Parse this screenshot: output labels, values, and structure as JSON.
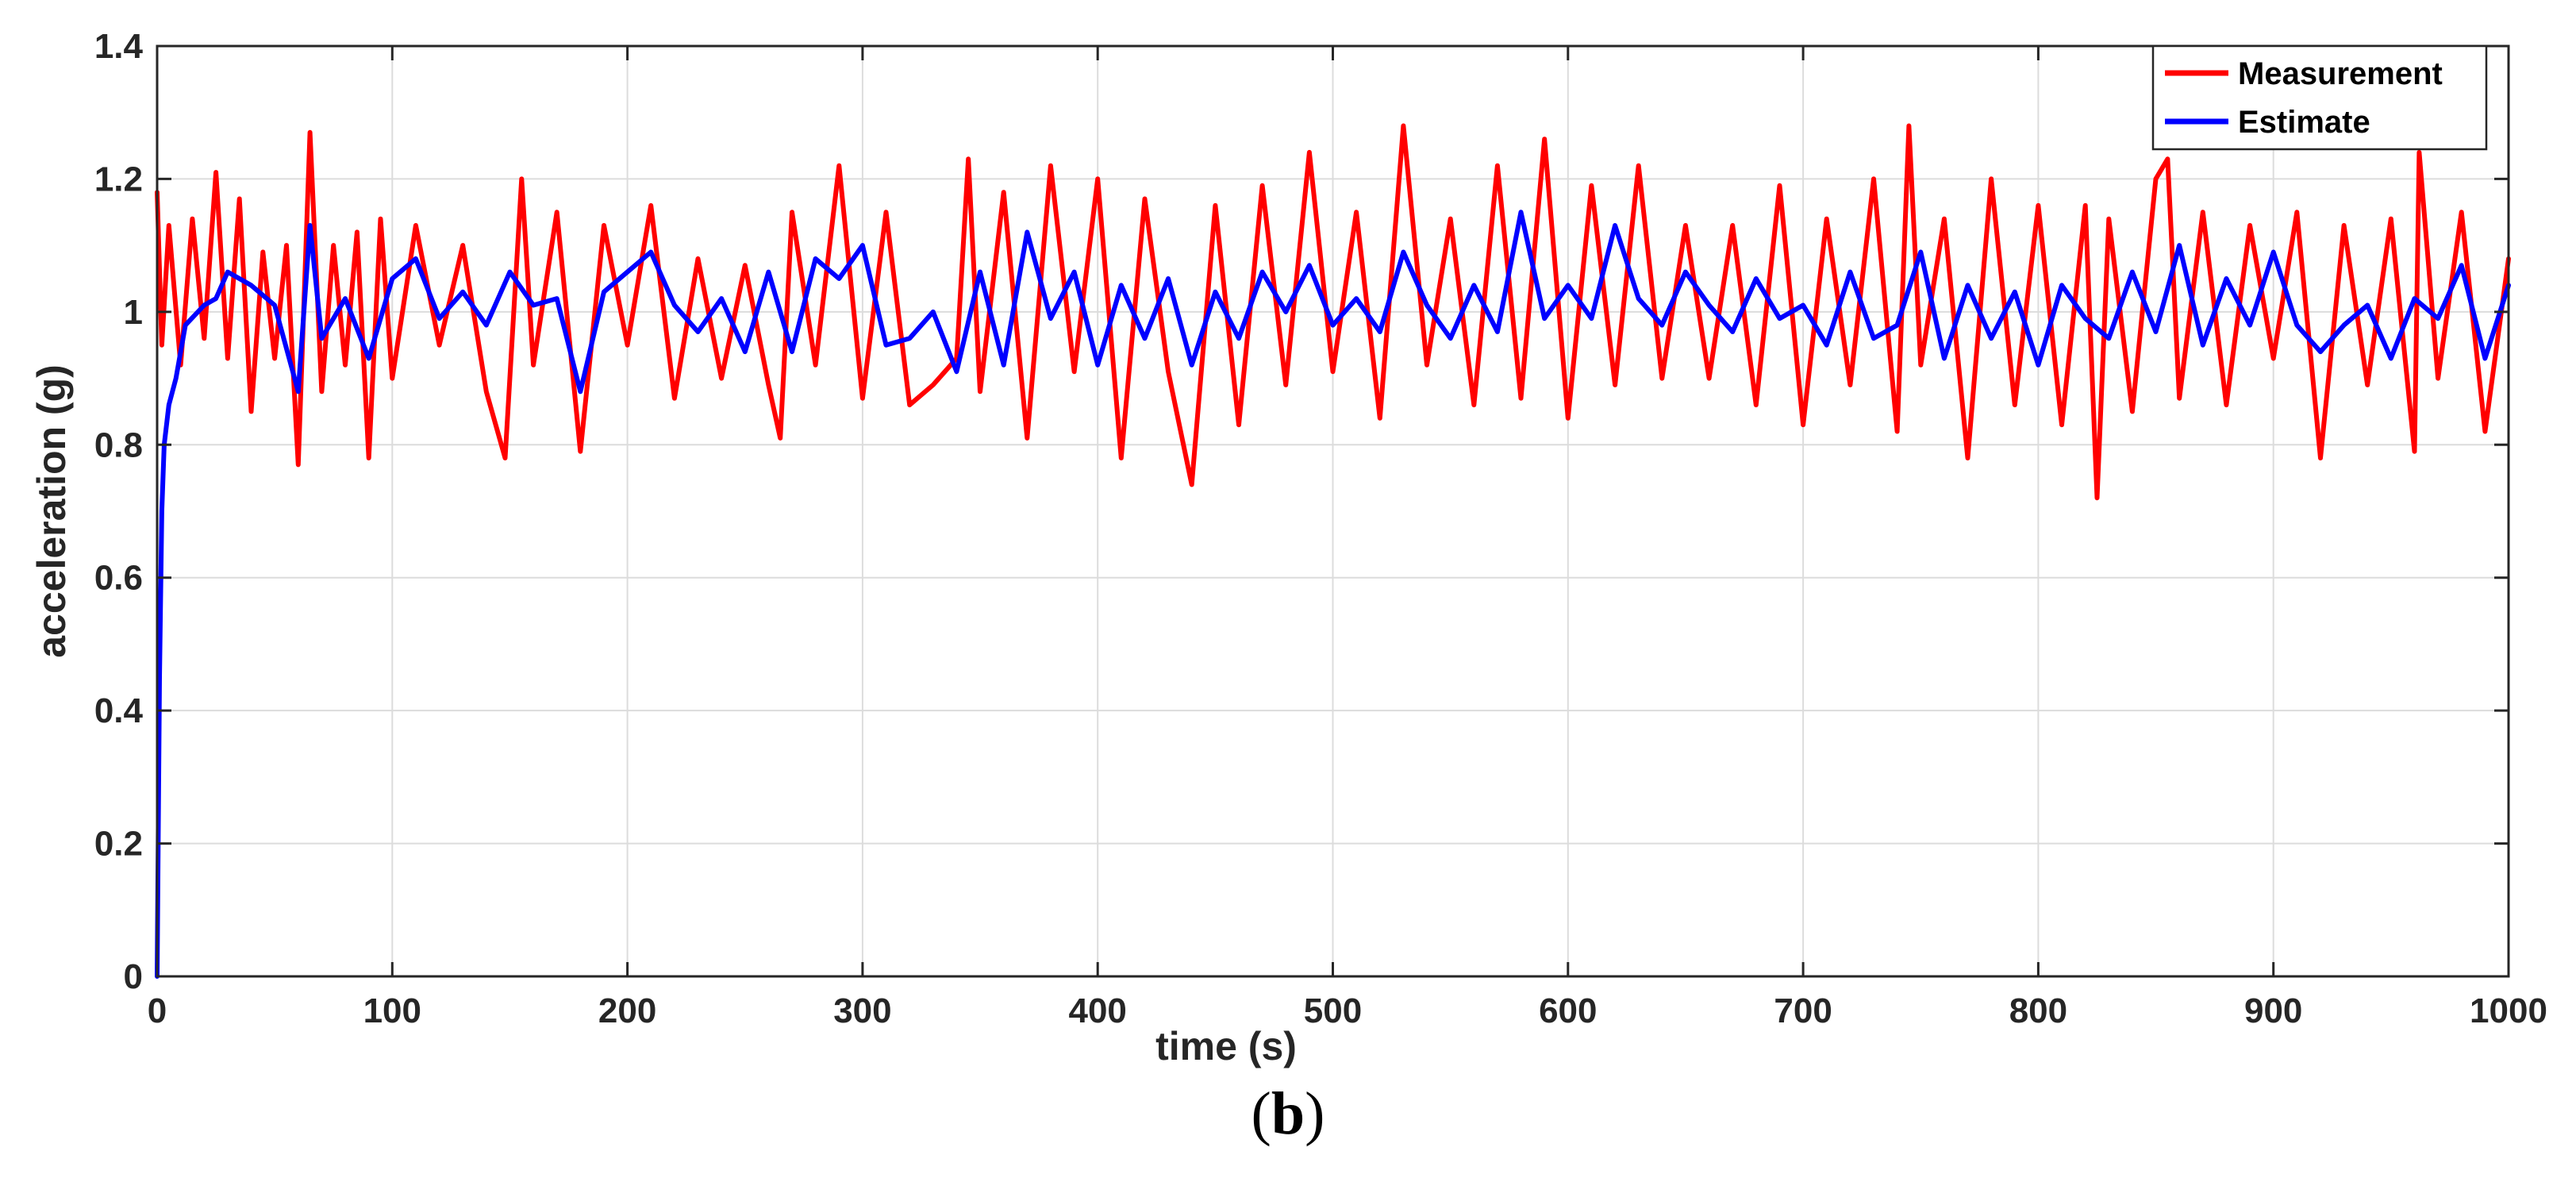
{
  "chart_data": {
    "type": "line",
    "xlabel": "time (s)",
    "ylabel": "acceleration (g)",
    "xlim": [
      0,
      1000
    ],
    "ylim": [
      0,
      1.4
    ],
    "x_ticks": [
      0,
      100,
      200,
      300,
      400,
      500,
      600,
      700,
      800,
      900,
      1000
    ],
    "y_ticks": [
      0,
      0.2,
      0.4,
      0.6,
      0.8,
      1,
      1.2,
      1.4
    ],
    "y_tick_labels": [
      "0",
      "0.2",
      "0.4",
      "0.6",
      "0.8",
      "1",
      "1.2",
      "1.4"
    ],
    "grid": true,
    "legend_position": "top-right",
    "series": [
      {
        "name": "Measurement",
        "color": "#ff0000",
        "x": [
          0,
          2,
          5,
          10,
          15,
          20,
          25,
          30,
          35,
          40,
          45,
          50,
          55,
          60,
          65,
          70,
          75,
          80,
          85,
          90,
          95,
          100,
          110,
          120,
          130,
          140,
          148,
          155,
          160,
          170,
          180,
          190,
          200,
          210,
          220,
          230,
          240,
          250,
          260,
          265,
          270,
          280,
          290,
          300,
          310,
          320,
          330,
          340,
          345,
          350,
          360,
          370,
          380,
          390,
          400,
          410,
          420,
          430,
          440,
          450,
          460,
          470,
          480,
          490,
          500,
          510,
          520,
          530,
          540,
          550,
          560,
          570,
          580,
          590,
          600,
          610,
          620,
          630,
          640,
          650,
          660,
          670,
          680,
          690,
          700,
          710,
          720,
          730,
          740,
          745,
          750,
          760,
          770,
          780,
          790,
          800,
          810,
          820,
          825,
          830,
          840,
          850,
          855,
          860,
          870,
          880,
          890,
          900,
          910,
          920,
          930,
          940,
          950,
          960,
          962,
          970,
          980,
          990,
          1000
        ],
        "y": [
          1.18,
          0.95,
          1.13,
          0.92,
          1.14,
          0.96,
          1.21,
          0.93,
          1.17,
          0.85,
          1.09,
          0.93,
          1.1,
          0.77,
          1.27,
          0.88,
          1.1,
          0.92,
          1.12,
          0.78,
          1.14,
          0.9,
          1.13,
          0.95,
          1.1,
          0.88,
          0.78,
          1.2,
          0.92,
          1.15,
          0.79,
          1.13,
          0.95,
          1.16,
          0.87,
          1.08,
          0.9,
          1.07,
          0.89,
          0.81,
          1.15,
          0.92,
          1.22,
          0.87,
          1.15,
          0.86,
          0.89,
          0.93,
          1.23,
          0.88,
          1.18,
          0.81,
          1.22,
          0.91,
          1.2,
          0.78,
          1.17,
          0.91,
          0.74,
          1.16,
          0.83,
          1.19,
          0.89,
          1.24,
          0.91,
          1.15,
          0.84,
          1.28,
          0.92,
          1.14,
          0.86,
          1.22,
          0.87,
          1.26,
          0.84,
          1.19,
          0.89,
          1.22,
          0.9,
          1.13,
          0.9,
          1.13,
          0.86,
          1.19,
          0.83,
          1.14,
          0.89,
          1.2,
          0.82,
          1.28,
          0.92,
          1.14,
          0.78,
          1.2,
          0.86,
          1.16,
          0.83,
          1.16,
          0.72,
          1.14,
          0.85,
          1.2,
          1.23,
          0.87,
          1.15,
          0.86,
          1.13,
          0.93,
          1.15,
          0.78,
          1.13,
          0.89,
          1.14,
          0.79,
          1.24,
          0.9,
          1.15,
          0.82,
          1.08
        ]
      },
      {
        "name": "Estimate",
        "color": "#0000ff",
        "x": [
          0,
          1,
          2,
          3,
          5,
          8,
          12,
          20,
          25,
          30,
          40,
          50,
          60,
          65,
          70,
          80,
          90,
          100,
          110,
          120,
          130,
          140,
          150,
          160,
          170,
          180,
          190,
          200,
          210,
          220,
          230,
          240,
          250,
          260,
          270,
          280,
          290,
          300,
          310,
          320,
          330,
          340,
          350,
          360,
          370,
          380,
          390,
          400,
          410,
          420,
          430,
          440,
          450,
          460,
          470,
          480,
          490,
          500,
          510,
          520,
          530,
          540,
          550,
          560,
          570,
          580,
          590,
          600,
          610,
          620,
          630,
          640,
          650,
          660,
          670,
          680,
          690,
          700,
          710,
          720,
          730,
          740,
          750,
          760,
          770,
          780,
          790,
          800,
          810,
          820,
          830,
          840,
          850,
          860,
          870,
          880,
          890,
          900,
          910,
          920,
          930,
          940,
          950,
          960,
          970,
          980,
          990,
          1000
        ],
        "y": [
          0,
          0.45,
          0.7,
          0.8,
          0.86,
          0.9,
          0.98,
          1.01,
          1.02,
          1.06,
          1.04,
          1.01,
          0.88,
          1.13,
          0.96,
          1.02,
          0.93,
          1.05,
          1.08,
          0.99,
          1.03,
          0.98,
          1.06,
          1.01,
          1.02,
          0.88,
          1.03,
          1.06,
          1.09,
          1.01,
          0.97,
          1.02,
          0.94,
          1.06,
          0.94,
          1.08,
          1.05,
          1.1,
          0.95,
          0.96,
          1.0,
          0.91,
          1.06,
          0.92,
          1.12,
          0.99,
          1.06,
          0.92,
          1.04,
          0.96,
          1.05,
          0.92,
          1.03,
          0.96,
          1.06,
          1.0,
          1.07,
          0.98,
          1.02,
          0.97,
          1.09,
          1.01,
          0.96,
          1.04,
          0.97,
          1.15,
          0.99,
          1.04,
          0.99,
          1.13,
          1.02,
          0.98,
          1.06,
          1.01,
          0.97,
          1.05,
          0.99,
          1.01,
          0.95,
          1.06,
          0.96,
          0.98,
          1.09,
          0.93,
          1.04,
          0.96,
          1.03,
          0.92,
          1.04,
          0.99,
          0.96,
          1.06,
          0.97,
          1.1,
          0.95,
          1.05,
          0.98,
          1.09,
          0.98,
          0.94,
          0.98,
          1.01,
          0.93,
          1.02,
          0.99,
          1.07,
          0.93,
          1.04
        ]
      }
    ]
  },
  "panel_label": "b"
}
